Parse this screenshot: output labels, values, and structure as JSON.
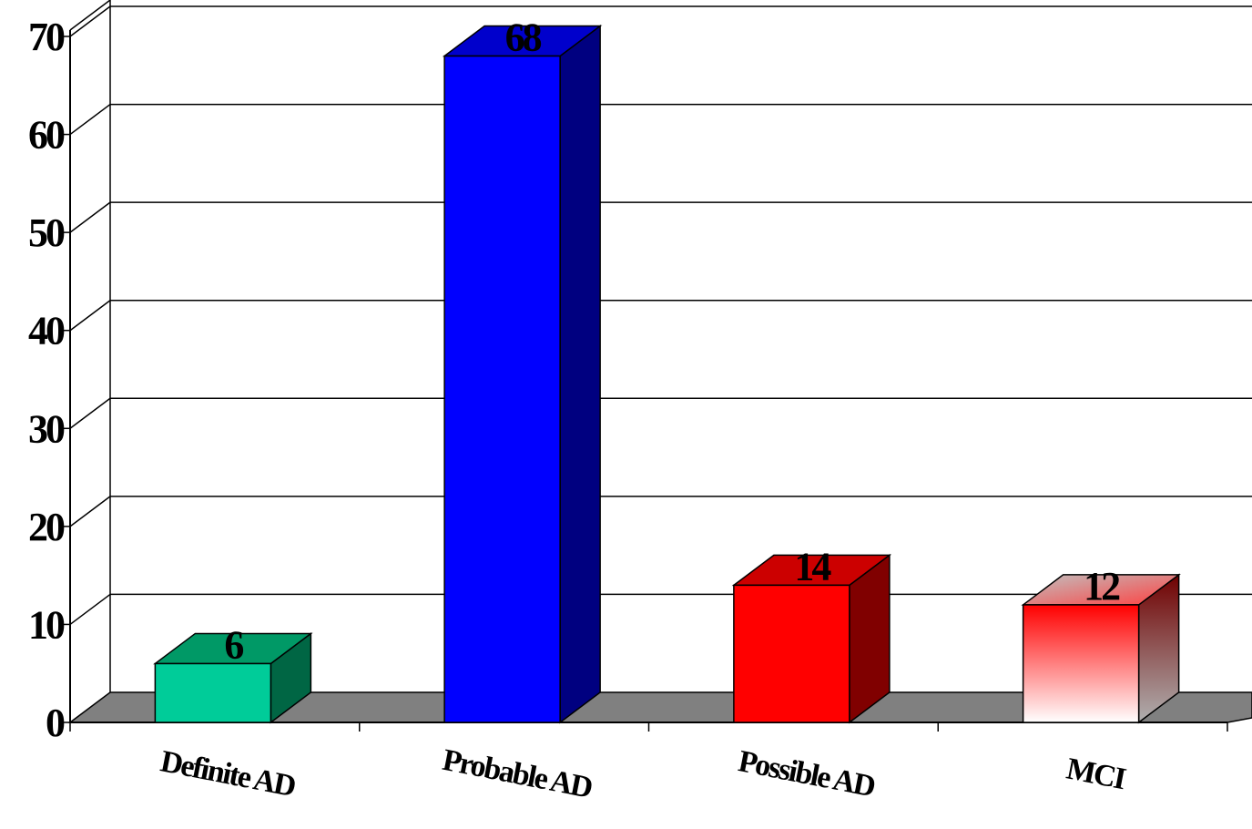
{
  "chart_data": {
    "type": "bar",
    "title": "",
    "xlabel": "",
    "ylabel": "",
    "categories": [
      "Definite AD",
      "Probable AD",
      "Possible AD",
      "MCI"
    ],
    "values": [
      6,
      68,
      14,
      12
    ],
    "data_labels": [
      "6",
      "68",
      "14",
      "12"
    ],
    "ylim": [
      0,
      70
    ],
    "yticks": [
      0,
      10,
      20,
      30,
      40,
      50,
      60,
      70
    ],
    "ytick_labels": [
      "0",
      "10",
      "20",
      "30",
      "40",
      "50",
      "60",
      "70"
    ],
    "grid": true,
    "legend": "none",
    "style": "3d-column",
    "colors": {
      "definite_ad": "#00cc99",
      "probable_ad": "#0000ff",
      "possible_ad": "#ff0000",
      "mci": "gradient red-white",
      "floor": "#808080"
    }
  }
}
